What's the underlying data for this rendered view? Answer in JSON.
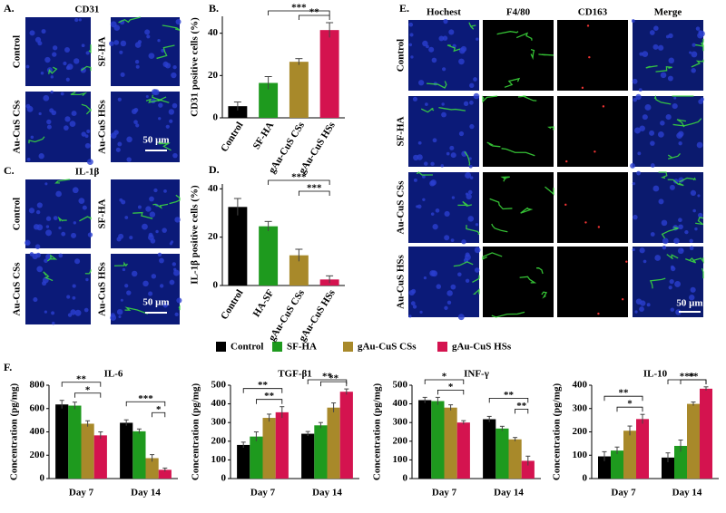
{
  "panel_labels": [
    "A.",
    "B.",
    "C.",
    "D.",
    "E.",
    "F."
  ],
  "panel_A": {
    "title": "CD31",
    "labels": [
      "Control",
      "SF-HA",
      "Au-CuS CSs",
      "Au-CuS HSs"
    ],
    "scale": "50 μm"
  },
  "panel_C": {
    "title": "IL-1β",
    "labels": [
      "Control",
      "SF-HA",
      "Au-CuS CSs",
      "Au-CuS HSs"
    ],
    "scale": "50 μm"
  },
  "panel_E": {
    "columns": [
      "Hochest",
      "F4/80",
      "CD163",
      "Merge"
    ],
    "rows": [
      "Control",
      "SF-HA",
      "Au-CuS CSs",
      "Au-CuS HSs"
    ],
    "scale": "50 μm"
  },
  "chart_data": [
    {
      "type": "bar",
      "ylabel": "CD31 positive cells (%)",
      "categories": [
        "Control",
        "SF-HA",
        "gAu-CuS CSs",
        "gAu-CuS HSs"
      ],
      "values": [
        5.5,
        16.5,
        26.5,
        41.5
      ],
      "errors": [
        2,
        3,
        1.5,
        3.5
      ],
      "colors": [
        "#000000",
        "#1e9a1e",
        "#a8892a",
        "#d4134f"
      ],
      "ylim": [
        0,
        48
      ],
      "yticks": [
        0,
        20,
        40
      ],
      "annotations": [
        "**",
        "***"
      ]
    },
    {
      "type": "bar",
      "ylabel": "IL-1β positive cells (%)",
      "categories": [
        "Control",
        "HA-SF",
        "gAu-CuS CSs",
        "gAu-CuS HSs"
      ],
      "values": [
        32.5,
        24.5,
        12.5,
        2.5
      ],
      "errors": [
        3.5,
        2,
        2.5,
        1.5
      ],
      "colors": [
        "#000000",
        "#1e9a1e",
        "#a8892a",
        "#d4134f"
      ],
      "ylim": [
        0,
        42
      ],
      "yticks": [
        0,
        20,
        40
      ],
      "annotations": [
        "***",
        "***"
      ]
    },
    {
      "type": "bar",
      "title": "IL-6",
      "ylabel": "Concentration (pg/mg)",
      "categories": [
        "Day 7",
        "Day 14"
      ],
      "series": [
        {
          "name": "Control",
          "color": "#000000",
          "values": [
            635,
            478
          ],
          "errors": [
            35,
            25
          ]
        },
        {
          "name": "SF-HA",
          "color": "#1e9a1e",
          "values": [
            625,
            405
          ],
          "errors": [
            30,
            20
          ]
        },
        {
          "name": "gAu-CuS CSs",
          "color": "#a8892a",
          "values": [
            470,
            175
          ],
          "errors": [
            25,
            30
          ]
        },
        {
          "name": "gAu-CuS HSs",
          "color": "#d4134f",
          "values": [
            370,
            75
          ],
          "errors": [
            30,
            15
          ]
        }
      ],
      "ylim": [
        0,
        800
      ],
      "yticks": [
        0,
        200,
        400,
        600,
        800
      ],
      "annotations": [
        "**",
        "*",
        "***",
        "*"
      ]
    },
    {
      "type": "bar",
      "title": "TGF-β1",
      "ylabel": "Concentration (pg/mg)",
      "categories": [
        "Day 7",
        "Day 14"
      ],
      "series": [
        {
          "name": "Control",
          "color": "#000000",
          "values": [
            180,
            240
          ],
          "errors": [
            15,
            12
          ]
        },
        {
          "name": "SF-HA",
          "color": "#1e9a1e",
          "values": [
            225,
            285
          ],
          "errors": [
            25,
            15
          ]
        },
        {
          "name": "gAu-CuS CSs",
          "color": "#a8892a",
          "values": [
            325,
            380
          ],
          "errors": [
            20,
            25
          ]
        },
        {
          "name": "gAu-CuS HSs",
          "color": "#d4134f",
          "values": [
            355,
            465
          ],
          "errors": [
            30,
            15
          ]
        }
      ],
      "ylim": [
        0,
        500
      ],
      "yticks": [
        0,
        100,
        200,
        300,
        400,
        500
      ],
      "annotations": [
        "**",
        "**",
        "**",
        "**"
      ]
    },
    {
      "type": "bar",
      "title": "INF-γ",
      "ylabel": "Concentration (pg/mg)",
      "categories": [
        "Day 7",
        "Day 14"
      ],
      "series": [
        {
          "name": "Control",
          "color": "#000000",
          "values": [
            420,
            318
          ],
          "errors": [
            15,
            15
          ]
        },
        {
          "name": "SF-HA",
          "color": "#1e9a1e",
          "values": [
            415,
            268
          ],
          "errors": [
            20,
            12
          ]
        },
        {
          "name": "gAu-CuS CSs",
          "color": "#a8892a",
          "values": [
            380,
            210
          ],
          "errors": [
            15,
            10
          ]
        },
        {
          "name": "gAu-CuS HSs",
          "color": "#d4134f",
          "values": [
            300,
            95
          ],
          "errors": [
            10,
            25
          ]
        }
      ],
      "ylim": [
        0,
        500
      ],
      "yticks": [
        0,
        100,
        200,
        300,
        400,
        500
      ],
      "annotations": [
        "*",
        "*",
        "**",
        "**"
      ]
    },
    {
      "type": "bar",
      "title": "IL-10",
      "ylabel": "Concentration (pg/mg)",
      "categories": [
        "Day 7",
        "Day 14"
      ],
      "series": [
        {
          "name": "Control",
          "color": "#000000",
          "values": [
            95,
            90
          ],
          "errors": [
            20,
            20
          ]
        },
        {
          "name": "SF-HA",
          "color": "#1e9a1e",
          "values": [
            120,
            140
          ],
          "errors": [
            15,
            25
          ]
        },
        {
          "name": "gAu-CuS CSs",
          "color": "#a8892a",
          "values": [
            205,
            320
          ],
          "errors": [
            20,
            8
          ]
        },
        {
          "name": "gAu-CuS HSs",
          "color": "#d4134f",
          "values": [
            255,
            385
          ],
          "errors": [
            20,
            8
          ]
        }
      ],
      "ylim": [
        0,
        400
      ],
      "yticks": [
        0,
        100,
        200,
        300,
        400
      ],
      "annotations": [
        "**",
        "*",
        "***",
        "**"
      ]
    }
  ]
}
